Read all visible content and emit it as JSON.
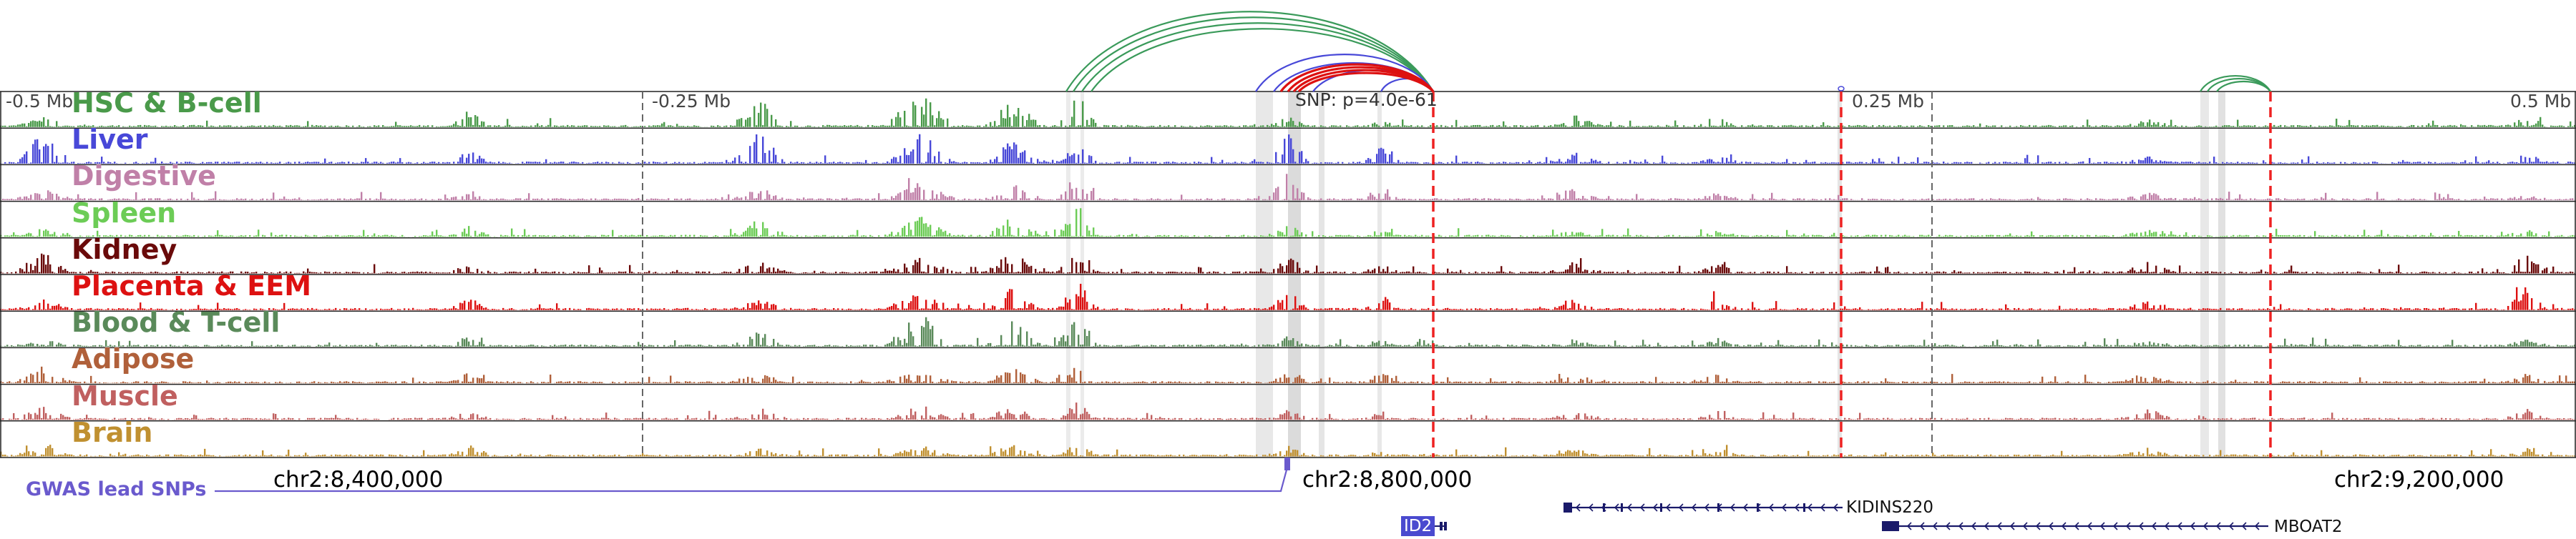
{
  "colors": {
    "HSC & B-cell": "#4a9a4a",
    "Liver": "#4848d8",
    "Digestive": "#c080a8",
    "Spleen": "#6ccc56",
    "Kidney": "#6a0a0a",
    "Placenta & EEM": "#dd1111",
    "Blood & T-cell": "#5a8a5a",
    "Adipose": "#b0603a",
    "Muscle": "#c06060",
    "Brain": "#c09030",
    "gwas": "#6a5acd",
    "gene": "#1a1a6a",
    "dashed_red": "#ee2222",
    "loop_green": "#3a9a5a",
    "loop_blue": "#4848d8",
    "loop_red": "#dd1111"
  },
  "tracks": [
    {
      "name": "HSC & B-cell"
    },
    {
      "name": "Liver"
    },
    {
      "name": "Digestive"
    },
    {
      "name": "Spleen"
    },
    {
      "name": "Kidney"
    },
    {
      "name": "Placenta & EEM"
    },
    {
      "name": "Blood & T-cell"
    },
    {
      "name": "Adipose"
    },
    {
      "name": "Muscle"
    },
    {
      "name": "Brain"
    }
  ],
  "scale": {
    "left": "-0.5 Mb",
    "mid_left": "-0.25 Mb",
    "mid_right": "0.25 Mb",
    "right": "0.5 Mb"
  },
  "snp_label": "SNP: p=4.0e-61",
  "gwas_label": "GWAS lead SNPs",
  "coordinates": [
    "chr2:8,400,000",
    "chr2:8,800,000",
    "chr2:9,200,000"
  ],
  "genes": [
    {
      "name": "KIDINS220",
      "strand": "-"
    },
    {
      "name": "ID2",
      "strand": "+"
    },
    {
      "name": "MBOAT2",
      "strand": "-"
    }
  ],
  "icons": [
    "arc-loop-icon",
    "dashed-boundary-icon",
    "gene-arrow-icon"
  ]
}
